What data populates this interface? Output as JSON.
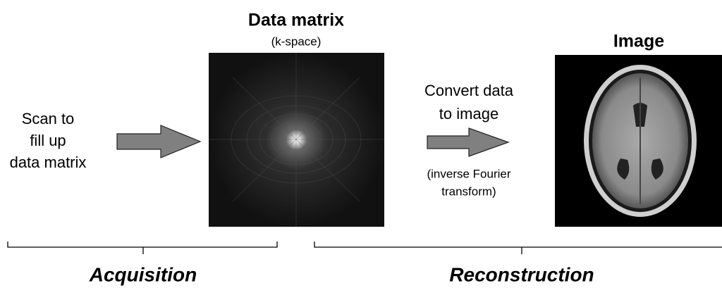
{
  "acquisition": {
    "input_label": [
      "Scan to",
      "fill up",
      "data matrix"
    ],
    "label": "Acquisition"
  },
  "data_matrix": {
    "title": "Data matrix",
    "subtitle": "(k-space)"
  },
  "conversion": {
    "label": [
      "Convert data",
      "to image"
    ],
    "note": [
      "(inverse Fourier",
      "transform)"
    ]
  },
  "image": {
    "title": "Image"
  },
  "reconstruction": {
    "label": "Reconstruction"
  }
}
